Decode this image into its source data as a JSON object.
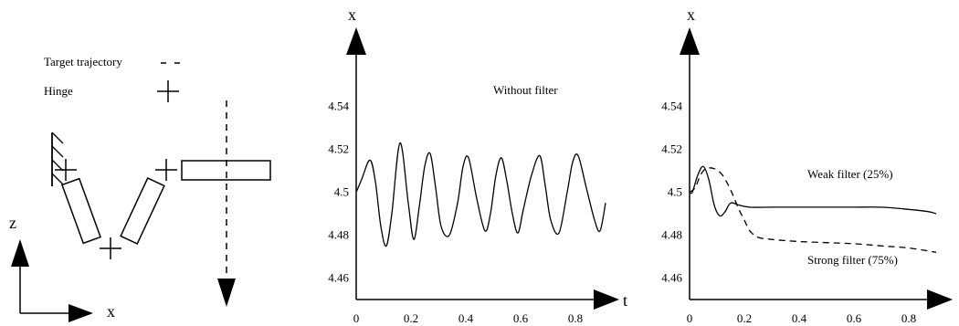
{
  "diagram": {
    "legend_target": "Target trajectory",
    "legend_hinge": "Hinge",
    "axis_z": "z",
    "axis_x": "x"
  },
  "chart_data": [
    {
      "type": "line",
      "xlabel": "t",
      "ylabel": "x",
      "xlim": [
        0,
        0.95
      ],
      "ylim": [
        4.45,
        4.56
      ],
      "xticks": [
        0,
        0.2,
        0.4,
        0.6,
        0.8
      ],
      "yticks": [
        4.46,
        4.48,
        4.5,
        4.52,
        4.54
      ],
      "xtick_labels": [
        "0",
        "0.2",
        "0.4",
        "0.6",
        "0.8"
      ],
      "ytick_labels": [
        "4.46",
        "4.48",
        "4.5",
        "4.52",
        "4.54"
      ],
      "series": [
        {
          "name": "Without filter",
          "style": "solid",
          "x": [
            0,
            0.02,
            0.05,
            0.07,
            0.09,
            0.11,
            0.13,
            0.16,
            0.19,
            0.21,
            0.23,
            0.25,
            0.27,
            0.29,
            0.31,
            0.34,
            0.37,
            0.39,
            0.41,
            0.44,
            0.47,
            0.49,
            0.51,
            0.53,
            0.55,
            0.57,
            0.59,
            0.61,
            0.64,
            0.67,
            0.69,
            0.71,
            0.74,
            0.77,
            0.79,
            0.81,
            0.84,
            0.87,
            0.89,
            0.91
          ],
          "y": [
            4.5,
            4.506,
            4.515,
            4.505,
            4.484,
            4.475,
            4.49,
            4.523,
            4.495,
            4.478,
            4.493,
            4.512,
            4.518,
            4.502,
            4.484,
            4.48,
            4.495,
            4.512,
            4.516,
            4.497,
            4.482,
            4.49,
            4.508,
            4.516,
            4.505,
            4.49,
            4.481,
            4.492,
            4.508,
            4.517,
            4.503,
            4.487,
            4.481,
            4.5,
            4.514,
            4.517,
            4.502,
            4.487,
            4.482,
            4.495
          ]
        }
      ]
    },
    {
      "type": "line",
      "xlabel": "",
      "ylabel": "x",
      "xlim": [
        0,
        0.95
      ],
      "ylim": [
        4.45,
        4.56
      ],
      "xticks": [
        0,
        0.2,
        0.4,
        0.6,
        0.8
      ],
      "yticks": [
        4.46,
        4.48,
        4.5,
        4.52,
        4.54
      ],
      "xtick_labels": [
        "0",
        "0.2",
        "0.4",
        "0.6",
        "0.8"
      ],
      "ytick_labels": [
        "4.46",
        "4.48",
        "4.5",
        "4.52",
        "4.54"
      ],
      "series": [
        {
          "name": "Weak filter (25%)",
          "style": "solid",
          "x": [
            0,
            0.01,
            0.03,
            0.05,
            0.07,
            0.09,
            0.11,
            0.13,
            0.15,
            0.18,
            0.22,
            0.3,
            0.4,
            0.5,
            0.6,
            0.7,
            0.8,
            0.87,
            0.9
          ],
          "y": [
            4.5,
            4.5,
            4.508,
            4.512,
            4.506,
            4.494,
            4.489,
            4.491,
            4.495,
            4.494,
            4.493,
            4.493,
            4.493,
            4.493,
            4.493,
            4.493,
            4.492,
            4.491,
            4.49
          ]
        },
        {
          "name": "Strong filter (75%)",
          "style": "dashed",
          "x": [
            0,
            0.02,
            0.04,
            0.06,
            0.09,
            0.12,
            0.15,
            0.18,
            0.2,
            0.22,
            0.25,
            0.3,
            0.4,
            0.5,
            0.6,
            0.7,
            0.8,
            0.9
          ],
          "y": [
            4.5,
            4.502,
            4.508,
            4.511,
            4.511,
            4.508,
            4.501,
            4.492,
            4.487,
            4.482,
            4.479,
            4.478,
            4.477,
            4.4765,
            4.476,
            4.475,
            4.474,
            4.472
          ]
        }
      ]
    }
  ]
}
